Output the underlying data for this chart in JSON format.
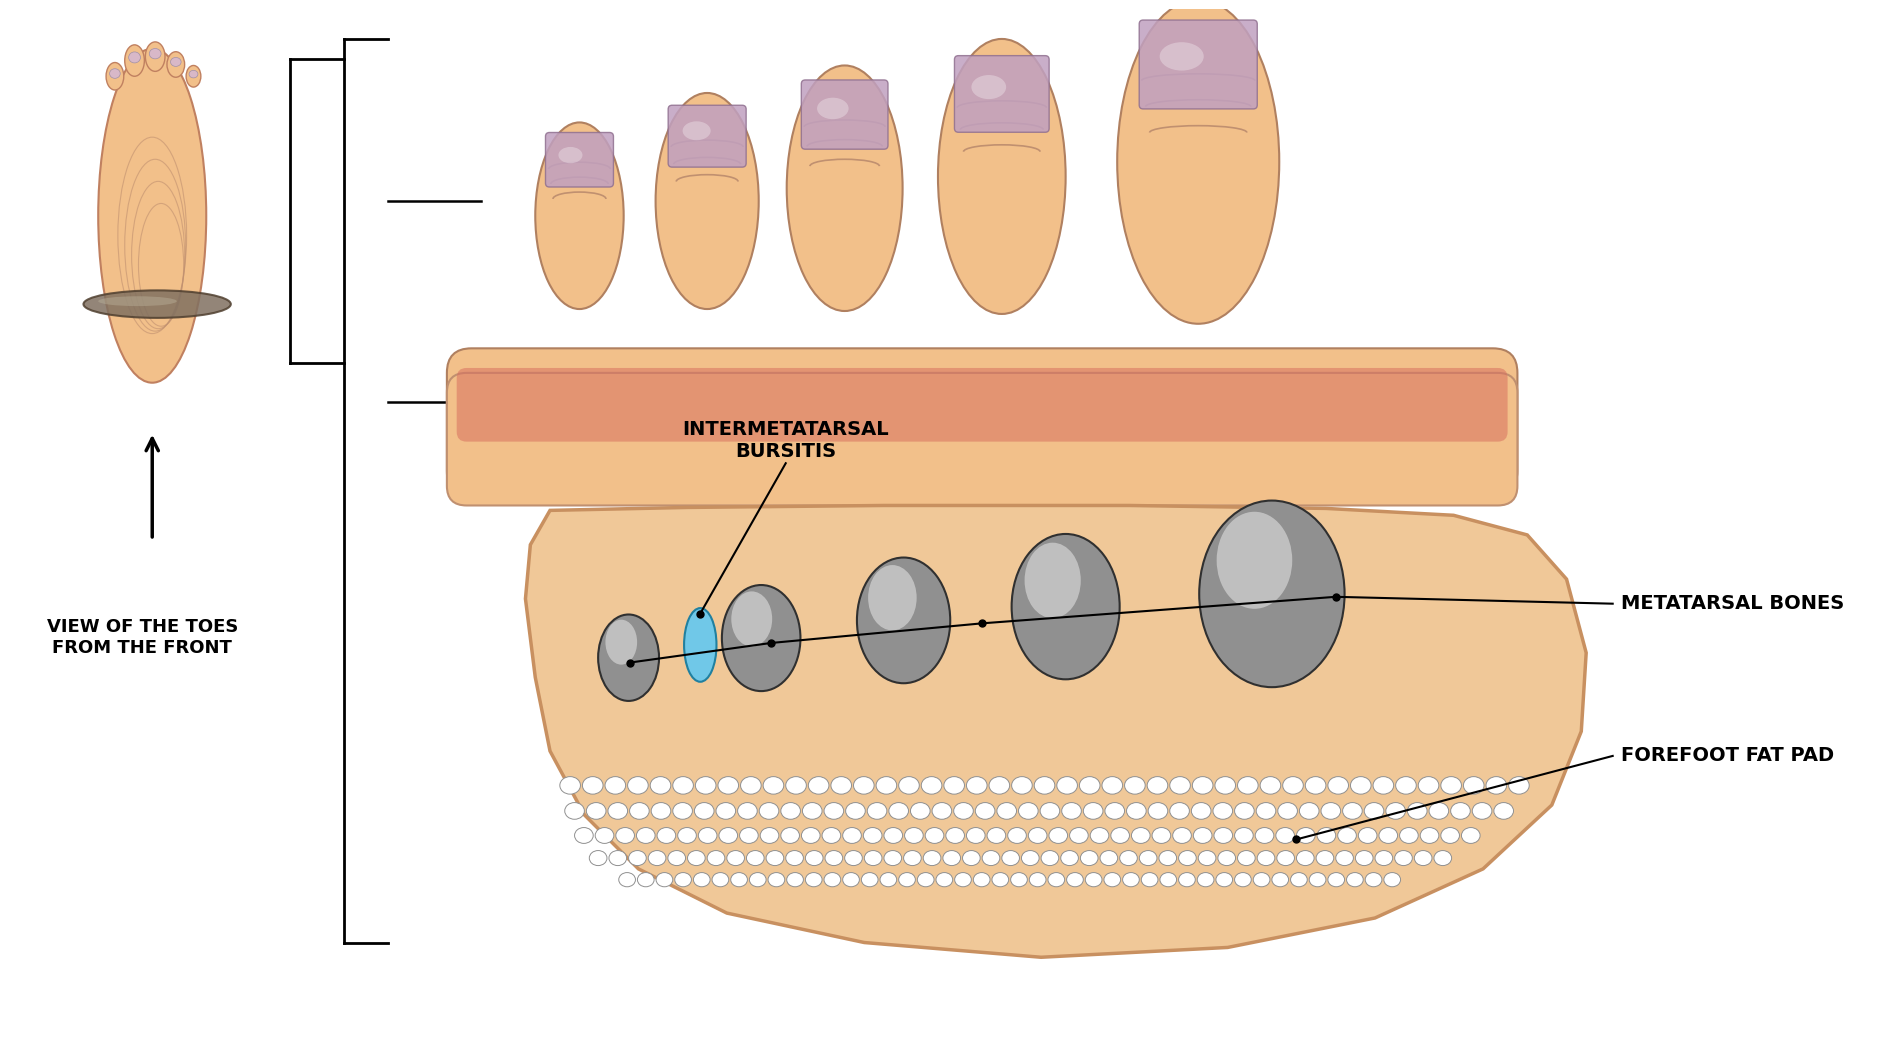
{
  "background_color": "#ffffff",
  "skin_color": "#f2c08a",
  "skin_mid": "#e8a870",
  "skin_dark": "#c8884a",
  "skin_light": "#f8d8b0",
  "bone_fill": "#909090",
  "bone_highlight": "#d0d0d0",
  "bone_edge": "#303030",
  "bursitis_fill": "#70c8e8",
  "bursitis_edge": "#2080a0",
  "fat_bg_fill": "#f0c898",
  "fat_bg_edge": "#c89060",
  "fat_cell_fill": "#ffffff",
  "fat_cell_edge": "#909090",
  "nail_fill": "#c0a0c0",
  "nail_edge": "#907090",
  "red_base": "#d06858",
  "label_intermetatarsal": "INTERMETATARSAL\nBURSITIS",
  "label_metatarsal": "METATARSAL BONES",
  "label_fatpad": "FOREFOOT FAT PAD",
  "label_view": "VIEW OF THE TOES\nFROM THE FRONT",
  "thumb_foot_skin": "#f2c08a",
  "thumb_foot_edge": "#c08060",
  "slice_fill": "#706858",
  "slice_edge": "#404030"
}
